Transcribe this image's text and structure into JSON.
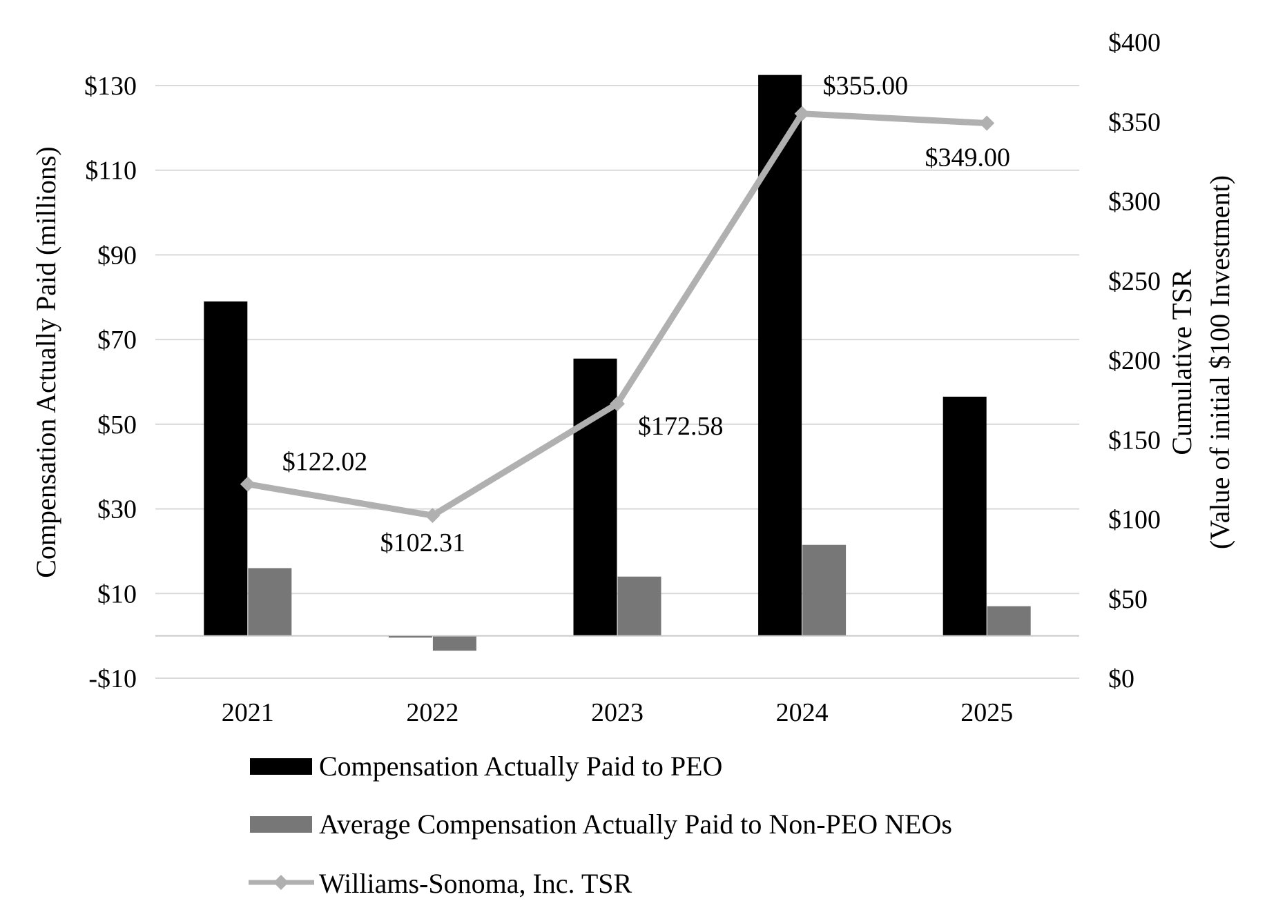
{
  "chart_data": {
    "type": "bar",
    "categories": [
      "2021",
      "2022",
      "2023",
      "2024",
      "2025"
    ],
    "series": [
      {
        "name": "Compensation Actually Paid to PEO",
        "type": "bar",
        "axis": "left",
        "color": "#000000",
        "values": [
          79,
          0,
          65.5,
          132.5,
          56.5
        ]
      },
      {
        "name": "Average Compensation Actually Paid to Non-PEO NEOs",
        "type": "bar",
        "axis": "left",
        "color": "#777777",
        "values": [
          16,
          -3.5,
          14,
          21.5,
          7
        ]
      },
      {
        "name": "Williams-Sonoma, Inc. TSR",
        "type": "line",
        "axis": "right",
        "color": "#b0b0b0",
        "marker": "diamond",
        "values": [
          122.02,
          102.31,
          172.58,
          355.0,
          349.0
        ],
        "labels": [
          "$122.02",
          "$102.31",
          "$172.58",
          "$355.00",
          "$349.00"
        ]
      }
    ],
    "y_left": {
      "title": "Compensation Actually Paid (millions)",
      "range": [
        -10,
        130
      ],
      "ticks": [
        -10,
        10,
        30,
        50,
        70,
        90,
        110,
        130
      ],
      "tick_labels": [
        "-$10",
        "$10",
        "$30",
        "$50",
        "$70",
        "$90",
        "$110",
        "$130"
      ]
    },
    "y_right": {
      "title_line1": "Cumulative TSR",
      "title_line2": "(Value of initial $100 Investment)",
      "range": [
        0,
        400
      ],
      "ticks": [
        0,
        50,
        100,
        150,
        200,
        250,
        300,
        350,
        400
      ],
      "tick_labels": [
        "$0",
        "$50",
        "$100",
        "$150",
        "$200",
        "$250",
        "$300",
        "$350",
        "$400"
      ]
    },
    "grid": true,
    "legend_position": "bottom"
  }
}
